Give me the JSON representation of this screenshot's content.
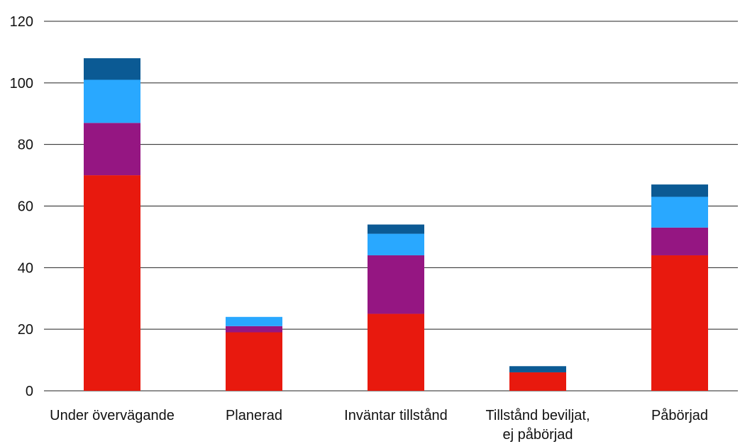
{
  "chart_data": {
    "type": "bar",
    "stacked": true,
    "title": "",
    "xlabel": "",
    "ylabel": "",
    "ylim": [
      0,
      120
    ],
    "yticks": [
      0,
      20,
      40,
      60,
      80,
      100,
      120
    ],
    "grid": true,
    "categories": [
      [
        "Under övervägande"
      ],
      [
        "Planerad"
      ],
      [
        "Inväntar tillstånd"
      ],
      [
        "Tillstånd beviljat,",
        "ej påbörjad"
      ],
      [
        "Påbörjad"
      ]
    ],
    "series": [
      {
        "color": "#e8190e",
        "values": [
          70,
          19,
          25,
          6,
          44
        ]
      },
      {
        "color": "#951682",
        "values": [
          17,
          2,
          19,
          0,
          9
        ]
      },
      {
        "color": "#29a8ff",
        "values": [
          14,
          3,
          7,
          0,
          10
        ]
      },
      {
        "color": "#0b5a94",
        "values": [
          7,
          0,
          3,
          2,
          4
        ]
      }
    ]
  }
}
